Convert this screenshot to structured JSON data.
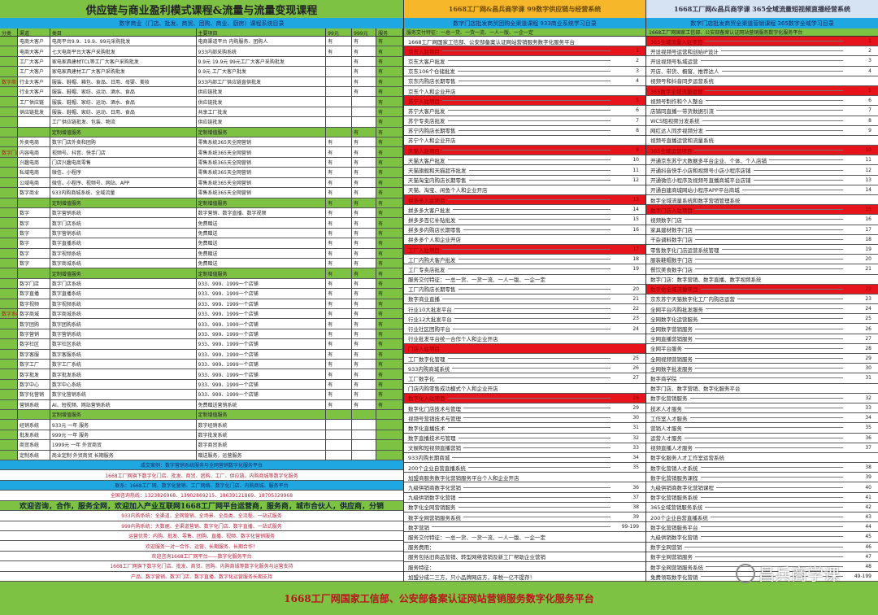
{
  "left": {
    "title": "供应链与商业盈利模式课程&流量与流量变现课程",
    "subtitle": "数字商业（门店、批发、商贸、团购、商业、厨房）课程系统目录",
    "columns": [
      "分类",
      "渠道",
      "类目",
      "主要项目",
      "99元",
      "999元",
      "服务"
    ],
    "rows": [
      {
        "t": "w",
        "c": [
          "",
          "电商大客户",
          "电商平台9.9、19.9、99元采购批发",
          "电商渠道平台 内购服务、团购人",
          "有",
          "有",
          "有"
        ]
      },
      {
        "t": "w",
        "c": [
          "",
          "电商大客户",
          "七大电商平台大客户采购批发",
          "933内部采购系统",
          "有",
          "有",
          "有"
        ]
      },
      {
        "t": "w",
        "c": [
          "",
          "工厂大客户",
          "家电家具建材TCL等工厂大客户采购批发",
          "9.9元 19.9元 99元工厂大客户采购批发",
          "",
          "有",
          "有"
        ]
      },
      {
        "t": "w",
        "c": [
          "",
          "工厂大客户",
          "家电家具建材工厂大客户采购批发",
          "9.9元 工厂大客户批发",
          "",
          "有",
          "有"
        ]
      },
      {
        "t": "w",
        "c": [
          "数字商业",
          "行业大客户",
          "服装、鞋帽、箱包、食品、日用、母婴、美妆",
          "933内部工厂供应链直供批发",
          "",
          "有",
          "有"
        ]
      },
      {
        "t": "w",
        "c": [
          "",
          "行业大客户",
          "服装、鞋帽、家纺、运动、酒水、食品",
          "供应链批发",
          "",
          "有",
          "有"
        ]
      },
      {
        "t": "w",
        "c": [
          "",
          "工厂供应链",
          "服装、鞋帽、家纺、运动、酒水、食品",
          "供应链批发",
          "",
          "",
          "有"
        ]
      },
      {
        "t": "w",
        "c": [
          "",
          "供应链批发",
          "服装、鞋帽、家纺、运动、日用、食品",
          "共享工厂批发",
          "",
          "",
          "有"
        ]
      },
      {
        "t": "w",
        "c": [
          "",
          "",
          "工厂供应链批发、包装、物流",
          "供应链批发",
          "",
          "",
          "有"
        ]
      },
      {
        "t": "g",
        "c": [
          "",
          "",
          "定制增值服务",
          "定制增值服务",
          "",
          "有",
          "有"
        ]
      },
      {
        "t": "w",
        "c": [
          "",
          "外卖电商",
          "数字门店外卖和团购",
          "零售系统365天全网营销",
          "有",
          "有",
          "有"
        ]
      },
      {
        "t": "w",
        "c": [
          "数字门店",
          "内容电商",
          "视频号、抖音、快手门店",
          "零售系统365天全网营销",
          "有",
          "有",
          "有"
        ]
      },
      {
        "t": "w",
        "c": [
          "",
          "兴趣电商",
          "门店兴趣电商零售",
          "零售系统365天全网营销",
          "有",
          "有",
          "有"
        ]
      },
      {
        "t": "w",
        "c": [
          "",
          "私域电商",
          "微信、小程序",
          "零售系统365天全网营销",
          "有",
          "有",
          "有"
        ]
      },
      {
        "t": "w",
        "c": [
          "",
          "公域电商",
          "微信、小程序、视频号、网站、APP",
          "零售系统365天全网营销",
          "有",
          "有",
          "有"
        ]
      },
      {
        "t": "w",
        "c": [
          "",
          "数字商业",
          "933内购商城系统、全域流量",
          "零售系统365天全网营销",
          "有",
          "有",
          "有"
        ]
      },
      {
        "t": "g",
        "c": [
          "",
          "",
          "定制增值服务",
          "定制增值服务",
          "有",
          "有",
          "有"
        ]
      },
      {
        "t": "w",
        "c": [
          "",
          "数字",
          "数字营销系统",
          "数字营销、数字直播、数字视频",
          "有",
          "有",
          "有"
        ]
      },
      {
        "t": "w",
        "c": [
          "",
          "数字",
          "数字门店系统",
          "免费赠送",
          "有",
          "有",
          "有"
        ]
      },
      {
        "t": "w",
        "c": [
          "",
          "数字",
          "数字营销系统",
          "免费赠送",
          "有",
          "有",
          "有"
        ]
      },
      {
        "t": "w",
        "c": [
          "",
          "数字",
          "数字直播系统",
          "免费赠送",
          "有",
          "有",
          "有"
        ]
      },
      {
        "t": "w",
        "c": [
          "",
          "数字",
          "数字视频系统",
          "免费赠送",
          "有",
          "有",
          "有"
        ]
      },
      {
        "t": "w",
        "c": [
          "",
          "数字",
          "数字商城系统",
          "免费赠送",
          "有",
          "有",
          "有"
        ]
      },
      {
        "t": "g",
        "c": [
          "",
          "",
          "定制增值服务",
          "定制增值服务",
          "有",
          "有",
          "有"
        ]
      },
      {
        "t": "w",
        "c": [
          "",
          "数字门店",
          "数字门店系统",
          "933、999、1999一个店铺",
          "有",
          "有",
          "有"
        ]
      },
      {
        "t": "w",
        "c": [
          "",
          "数字直播",
          "数字直播系统",
          "933、999、1999一个店铺",
          "有",
          "有",
          "有"
        ]
      },
      {
        "t": "w",
        "c": [
          "",
          "数字视频",
          "数字视频系统",
          "933、999、1999一个店铺",
          "有",
          "有",
          "有"
        ]
      },
      {
        "t": "w",
        "c": [
          "数字系统",
          "数字商城",
          "数字商城系统",
          "933、999、1999一个店铺",
          "有",
          "有",
          "有"
        ]
      },
      {
        "t": "w",
        "c": [
          "",
          "数字团购",
          "数字团购系统",
          "933、999、1999一个店铺",
          "有",
          "有",
          "有"
        ]
      },
      {
        "t": "w",
        "c": [
          "",
          "数字营销",
          "数字营销系统",
          "933、999、1999一个店铺",
          "有",
          "有",
          "有"
        ]
      },
      {
        "t": "w",
        "c": [
          "",
          "数字社区",
          "数字社区系统",
          "933、999、1999一个店铺",
          "有",
          "有",
          "有"
        ]
      },
      {
        "t": "w",
        "c": [
          "",
          "数字客服",
          "数字客服系统",
          "933、999、1999一个店铺",
          "有",
          "有",
          "有"
        ]
      },
      {
        "t": "w",
        "c": [
          "",
          "数字工厂",
          "数字工厂系统",
          "933、999、1999一个店铺",
          "有",
          "有",
          "有"
        ]
      },
      {
        "t": "w",
        "c": [
          "",
          "数字批发",
          "数字批发系统",
          "933、999、1999一个店铺",
          "有",
          "有",
          "有"
        ]
      },
      {
        "t": "w",
        "c": [
          "",
          "数字中心",
          "数字中心系统",
          "933、999、1999一个店铺",
          "有",
          "有",
          "有"
        ]
      },
      {
        "t": "w",
        "c": [
          "",
          "数字化营销",
          "数字化营销系统",
          "933、999、1999一个店铺",
          "有",
          "有",
          "有"
        ]
      },
      {
        "t": "w",
        "c": [
          "",
          "营销系统",
          "AI、短视频、网站营销系统",
          "免费赠送营销系统",
          "有",
          "有",
          "有"
        ]
      },
      {
        "t": "g",
        "c": [
          "",
          "",
          "定制增值服务",
          "定制增值服务",
          "",
          "",
          ""
        ]
      },
      {
        "t": "w",
        "c": [
          "",
          "经销系统",
          "933元 一年 服务",
          "数字经销系统",
          "",
          "",
          ""
        ]
      },
      {
        "t": "w",
        "c": [
          "",
          "批发系统",
          "999元 一年 服务",
          "数字批发系统",
          "",
          "",
          ""
        ]
      },
      {
        "t": "w",
        "c": [
          "",
          "商贸系统",
          "1999元 一年 外贸商贸",
          "数字商贸系统",
          "",
          "",
          ""
        ]
      },
      {
        "t": "w",
        "c": [
          "",
          "定制系统",
          "商业定制 外贸商贸 长期服务",
          "赠送服务，运营服务",
          "",
          "",
          ""
        ]
      }
    ],
    "bands": [
      {
        "t": "blue",
        "text": "成交案例：数字营销系统服务与全网营销数字化服务平台"
      },
      {
        "t": "pink",
        "text": "1668工厂网旗下数字化门店、批发、商贸、团购、工厂、供应链、内购商城等数字化服务"
      },
      {
        "t": "blue",
        "text": "联系：1668工厂网、数字化营销、工厂网络、数字化门店、内购商城、服务平台"
      },
      {
        "t": "pink",
        "text": "全国咨询热线：1323826968、13902869215、18639121869、18705329968"
      },
      {
        "t": "bigg",
        "text": "欢迎咨询，合作，服务全网，欢迎加入产业互联网1668工厂网平台运营商，服务商，城市合伙人，供应商，分销"
      },
      {
        "t": "pink",
        "text": "933内购系统：全渠道、全网营销、全场景、全品类、全流程、一站式服务"
      },
      {
        "t": "pink",
        "text": "999内购系统：大数据、全渠道营销、数字化门店、数字直播、一站式服务"
      },
      {
        "t": "pink",
        "text": "运营优势：内购、批发、零售、团购、直播、视频、数字化营销服务"
      },
      {
        "t": "pink",
        "text": "欢迎服务一对一合作、运营、长期服务、长期合作！"
      },
      {
        "t": "pink",
        "text": "欢迎咨询1668工厂网平台——数字化服务平台"
      },
      {
        "t": "pink",
        "text": "1668工厂网旗下数字化门店、批发、商贸、团购、内购商城等数字化服务与运营支持"
      },
      {
        "t": "pink",
        "text": "产品、数字营销、数字门店、数字直播、数字化运营服务长期支持"
      }
    ]
  },
  "mid": {
    "title": "1668工厂网&昌兵商学课 99数字供应链与经营系统",
    "subtitle": "数字门店批发商贸团购全渠道课程 933商业系统学习目录",
    "header": "服务交付特征：一总一货、一货一流、一人一版、一企一定",
    "rows": [
      {
        "t": "w",
        "text": "1668工厂网国家工信部、公安部备案认证网站营销服务数字化服务平台",
        "num": ""
      },
      {
        "t": "r",
        "text": "京东入驻项目",
        "num": "1"
      },
      {
        "t": "w",
        "text": "京东大客户批发",
        "num": "2"
      },
      {
        "t": "w",
        "text": "京东106个仓储批发",
        "num": "3"
      },
      {
        "t": "w",
        "text": "京东内购店长期零售",
        "num": "4"
      },
      {
        "t": "w",
        "text": "京东个人和企业开店",
        "num": ""
      },
      {
        "t": "r",
        "text": "苏宁入驻项目",
        "num": "5"
      },
      {
        "t": "w",
        "text": "苏宁大客户批发",
        "num": "6"
      },
      {
        "t": "w",
        "text": "苏宁专卖店批发",
        "num": "7"
      },
      {
        "t": "w",
        "text": "苏宁内购店长期零售",
        "num": "8"
      },
      {
        "t": "w",
        "text": "苏宁个人和企业开店",
        "num": ""
      },
      {
        "t": "r",
        "text": "天猫入驻项目",
        "num": "9"
      },
      {
        "t": "w",
        "text": "天猫大客户批发",
        "num": "10"
      },
      {
        "t": "w",
        "text": "天猫旗舰和天猫超市批发",
        "num": "11"
      },
      {
        "t": "w",
        "text": "天猫淘宝内购店长期零售",
        "num": "12"
      },
      {
        "t": "w",
        "text": "天猫、淘宝、闲鱼个人和企业开店",
        "num": ""
      },
      {
        "t": "r",
        "text": "拼多多入驻项目",
        "num": "13"
      },
      {
        "t": "w",
        "text": "拼多多大客户批发",
        "num": "14"
      },
      {
        "t": "w",
        "text": "拼多多百亿补贴批发",
        "num": "15"
      },
      {
        "t": "w",
        "text": "拼多多内购店长期零售",
        "num": "16"
      },
      {
        "t": "w",
        "text": "拼多多个人和企业开店",
        "num": ""
      },
      {
        "t": "r",
        "text": "工厂入驻项目",
        "num": "17"
      },
      {
        "t": "w",
        "text": "工厂内购大客户批发",
        "num": "18"
      },
      {
        "t": "w",
        "text": "工厂专卖店批发",
        "num": "19"
      },
      {
        "t": "w",
        "text": "服务交付特征：一总一货、一货一流、一人一版、一企一定",
        "num": ""
      },
      {
        "t": "w",
        "text": "工厂内购店长期零售",
        "num": "20"
      },
      {
        "t": "w",
        "text": "数字商业直播",
        "num": "21"
      },
      {
        "t": "w",
        "text": "行业10大批发平台",
        "num": "22"
      },
      {
        "t": "w",
        "text": "行业12大批发平台",
        "num": "23"
      },
      {
        "t": "w",
        "text": "行业社区团购平台",
        "num": "24"
      },
      {
        "t": "w",
        "text": "行业批发平台统一合作个人和企业开店",
        "num": ""
      },
      {
        "t": "r",
        "text": "门店入驻项目",
        "num": ""
      },
      {
        "t": "w",
        "text": "工厂数字化管理",
        "num": "25"
      },
      {
        "t": "w",
        "text": "933内购商城系统",
        "num": "26"
      },
      {
        "t": "w",
        "text": "工厂数字化",
        "num": "27"
      },
      {
        "t": "w",
        "text": "门店内购零售成功模式个人和企业开店",
        "num": ""
      },
      {
        "t": "r",
        "text": "数字化入驻项目",
        "num": "28"
      },
      {
        "t": "w",
        "text": "数字化门店技术与管理",
        "num": "29"
      },
      {
        "t": "w",
        "text": "视频号营销技术与管理",
        "num": "30"
      },
      {
        "t": "w",
        "text": "数字化直播技术",
        "num": "31"
      },
      {
        "t": "w",
        "text": "数字直播技术与管理",
        "num": "32"
      },
      {
        "t": "w",
        "text": "文娱和短视频直播营销",
        "num": "33"
      },
      {
        "t": "w",
        "text": "933内购长期商城",
        "num": "34"
      },
      {
        "t": "w",
        "text": "200个企业自营直播系统",
        "num": "35"
      },
      {
        "t": "w",
        "text": "加盟商服务数字化营销服务平台个人和企业开店",
        "num": ""
      },
      {
        "t": "w",
        "text": "九级供销商数字化营销",
        "num": "36"
      },
      {
        "t": "w",
        "text": "九级供销数字化营销",
        "num": "37"
      },
      {
        "t": "w",
        "text": "数字化全网营销服务",
        "num": "38"
      },
      {
        "t": "w",
        "text": "数字全网营销服务系统",
        "num": "39"
      },
      {
        "t": "w",
        "text": "数字营销",
        "num": "99-199"
      },
      {
        "t": "w",
        "text": "服务交付特征：一总一货、一货一流、一人一版、一企一定",
        "num": ""
      },
      {
        "t": "w",
        "text": "服务费用：",
        "num": ""
      },
      {
        "t": "w",
        "text": "服务包括旧商品营销、转型网络营销及新工厂帮助企业营销",
        "num": ""
      },
      {
        "t": "w",
        "text": "服务特征：",
        "num": ""
      },
      {
        "t": "w",
        "text": "加盟分成二三方，只小品牌网店方，年税一亿不提存！",
        "num": ""
      }
    ]
  },
  "right": {
    "title": "1668工厂网&昌兵商学课 365全域流量短视频直播经营系统",
    "subtitle": "数字门店批发商贸全渠道营销课程 365数字全域学习目录",
    "header": "1668工厂网国家工信部、公安部备案认证网站营销服务数字化服务平台",
    "rows": [
      {
        "t": "r",
        "text": "365全域流量入驻项目",
        "num": "1"
      },
      {
        "t": "w",
        "text": "开设视频号运营和创始IP设计",
        "num": "2"
      },
      {
        "t": "w",
        "text": "开设视频号私域运营",
        "num": "3"
      },
      {
        "t": "w",
        "text": "开店、带货、橱窗、推荐达人",
        "num": "4"
      },
      {
        "t": "w",
        "text": "视频号和抖音同步运营系统",
        "num": ""
      },
      {
        "t": "r",
        "text": "365数字全域流量运营",
        "num": "5"
      },
      {
        "t": "w",
        "text": "视频号制作和个人整合",
        "num": "6"
      },
      {
        "t": "w",
        "text": "店铺同直播一带货数据引流",
        "num": "7"
      },
      {
        "t": "w",
        "text": "WCS短视频分发系统",
        "num": "8"
      },
      {
        "t": "w",
        "text": "网红达人同步视频分发",
        "num": "9"
      },
      {
        "t": "w",
        "text": "视频号直播运营和流量系统",
        "num": ""
      },
      {
        "t": "r",
        "text": "365全域运营项目",
        "num": "10"
      },
      {
        "t": "w",
        "text": "开通京东苏宁大数据多平台企业、个体、个人店铺",
        "num": "11"
      },
      {
        "t": "w",
        "text": "开通抖音快手小店和视频号小店小程序店铺",
        "num": "12"
      },
      {
        "t": "w",
        "text": "开通微信小程序及视频号直播商城平台店铺",
        "num": "13"
      },
      {
        "t": "w",
        "text": "开通自建商城网站小程序APP平台商城",
        "num": "14"
      },
      {
        "t": "w",
        "text": "数字全域流量系统和数字营销管理系统",
        "num": ""
      },
      {
        "t": "r",
        "text": "数字门店入驻项目",
        "num": "15"
      },
      {
        "t": "w",
        "text": "视频数字门店",
        "num": "16"
      },
      {
        "t": "w",
        "text": "家具建材数字门店",
        "num": "17"
      },
      {
        "t": "w",
        "text": "干杂调料数字门店",
        "num": "18"
      },
      {
        "t": "w",
        "text": "零售数字化门店运营系统管理",
        "num": "19"
      },
      {
        "t": "w",
        "text": "服装鞋帽数字门店",
        "num": "20"
      },
      {
        "t": "w",
        "text": "餐饮美食数字门店",
        "num": "21"
      },
      {
        "t": "w",
        "text": "数字门店：数字营销、数字直播、数字视频系统",
        "num": ""
      },
      {
        "t": "r",
        "text": "数字化全域流量项目",
        "num": "22"
      },
      {
        "t": "w",
        "text": "京东苏宁天猫数字化工厂内购店运营",
        "num": "23"
      },
      {
        "t": "w",
        "text": "全网平台内购批发服务",
        "num": "24"
      },
      {
        "t": "w",
        "text": "全网数字化运营服务",
        "num": "25"
      },
      {
        "t": "w",
        "text": "全网数字营销服务",
        "num": "26"
      },
      {
        "t": "w",
        "text": "全网直播营销服务",
        "num": "27"
      },
      {
        "t": "w",
        "text": "全网平台服务",
        "num": "28"
      },
      {
        "t": "w",
        "text": "全网视频营销服务",
        "num": "29"
      },
      {
        "t": "w",
        "text": "全网数字批发服务",
        "num": "30"
      },
      {
        "t": "w",
        "text": "数字商学院",
        "num": "31"
      },
      {
        "t": "w",
        "text": "数字门店、数字营销、数字化服务平台",
        "num": ""
      },
      {
        "t": "w",
        "text": "数字化营销服务",
        "num": "32"
      },
      {
        "t": "w",
        "text": "技术人才服务",
        "num": "33"
      },
      {
        "t": "w",
        "text": "工作室人才服务",
        "num": "34"
      },
      {
        "t": "w",
        "text": "营销人才服务",
        "num": "35"
      },
      {
        "t": "w",
        "text": "运营人才服务",
        "num": "36"
      },
      {
        "t": "w",
        "text": "视频直播人才服务",
        "num": "37"
      },
      {
        "t": "w",
        "text": "数字化服务人才工作室运营系统",
        "num": ""
      },
      {
        "t": "w",
        "text": "数字化营销人才系统",
        "num": "38"
      },
      {
        "t": "w",
        "text": "数字化营销服务课程",
        "num": "39"
      },
      {
        "t": "w",
        "text": "九级供销商数字化营销课程",
        "num": "40"
      },
      {
        "t": "w",
        "text": "数字化营销服务系统",
        "num": "41"
      },
      {
        "t": "w",
        "text": "365全域营销服务系统",
        "num": "42"
      },
      {
        "t": "w",
        "text": "200个企业自营直播系统",
        "num": "43"
      },
      {
        "t": "w",
        "text": "数字化营销服务平台",
        "num": "44"
      },
      {
        "t": "w",
        "text": "九级供销数字化营销",
        "num": "45"
      },
      {
        "t": "w",
        "text": "数字全网营销",
        "num": "46"
      },
      {
        "t": "w",
        "text": "数字全网营销服务",
        "num": "47"
      },
      {
        "t": "w",
        "text": "数字全网营销服务系统",
        "num": "48"
      },
      {
        "t": "w",
        "text": "免费领取数字化营销",
        "num": "49-199"
      }
    ]
  },
  "footer": "1668工厂网国家工信部、公安部备案认证网站营销服务数字化服务平台",
  "watermark": "昌兵商学课",
  "colors": {
    "green": "#7dc242",
    "blue": "#1ea7e1",
    "red": "#e8141b",
    "orange": "#f6b82a",
    "lightblue": "#d6e3f2"
  }
}
